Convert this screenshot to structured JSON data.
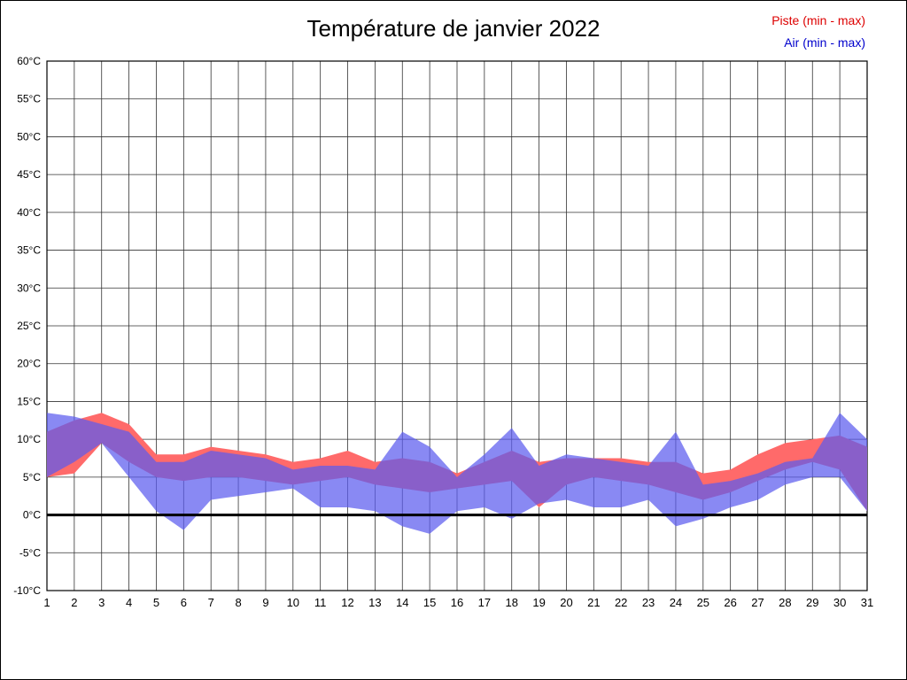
{
  "title": "Température de janvier 2022",
  "legend": {
    "piste_label": "Piste (min - max)",
    "air_label": "Air (min - max)",
    "piste_text_color": "#dd0000",
    "air_text_color": "#0000cc"
  },
  "colors": {
    "piste_band": "#ff6a6a",
    "air_band": "#5c5cef",
    "air_band_opacity": 0.72,
    "grid": "#333333",
    "axis": "#000000",
    "zero_line": "#000000"
  },
  "chart_data": {
    "type": "area",
    "title": "Température de janvier 2022",
    "xlabel": "",
    "ylabel": "",
    "grid": true,
    "legend_position": "top-right",
    "ylim": [
      -10,
      60
    ],
    "x": [
      1,
      2,
      3,
      4,
      5,
      6,
      7,
      8,
      9,
      10,
      11,
      12,
      13,
      14,
      15,
      16,
      17,
      18,
      19,
      20,
      21,
      22,
      23,
      24,
      25,
      26,
      27,
      28,
      29,
      30,
      31
    ],
    "y_ticks": [
      {
        "v": -10,
        "label": "-10°C"
      },
      {
        "v": -5,
        "label": "-5°C"
      },
      {
        "v": 0,
        "label": "0°C"
      },
      {
        "v": 5,
        "label": "5°C"
      },
      {
        "v": 10,
        "label": "10°C"
      },
      {
        "v": 15,
        "label": "15°C"
      },
      {
        "v": 20,
        "label": "20°C"
      },
      {
        "v": 25,
        "label": "25°C"
      },
      {
        "v": 30,
        "label": "30°C"
      },
      {
        "v": 35,
        "label": "35°C"
      },
      {
        "v": 40,
        "label": "40°C"
      },
      {
        "v": 45,
        "label": "45°C"
      },
      {
        "v": 50,
        "label": "50°C"
      },
      {
        "v": 55,
        "label": "55°C"
      },
      {
        "v": 60,
        "label": "60°C"
      }
    ],
    "series": [
      {
        "name": "Piste (min - max)",
        "color": "#ff6a6a",
        "min": [
          5,
          5.5,
          9.5,
          7,
          5,
          4.5,
          5,
          5,
          4.5,
          4,
          4.5,
          5,
          4,
          3.5,
          3,
          3.5,
          4,
          4.5,
          1,
          4,
          5,
          4.5,
          4,
          3,
          2,
          3,
          4.5,
          6,
          7,
          6,
          0.5
        ],
        "max": [
          11,
          12.5,
          13.5,
          12,
          8,
          8,
          9,
          8.5,
          8,
          7,
          7.5,
          8.5,
          7,
          7.5,
          7,
          5.5,
          7,
          8.5,
          7,
          7.5,
          7.5,
          7.5,
          7,
          7,
          5.5,
          6,
          8,
          9.5,
          10,
          10.5,
          9
        ]
      },
      {
        "name": "Air (min - max)",
        "color": "#5c5cef",
        "min": [
          5,
          7,
          9.5,
          5,
          0.5,
          -2,
          2,
          2.5,
          3,
          3.5,
          1,
          1,
          0.5,
          -1.5,
          -2.5,
          0.5,
          1,
          -0.5,
          1.5,
          2,
          1,
          1,
          2,
          -1.5,
          -0.5,
          1,
          2,
          4,
          5,
          5,
          0.5
        ],
        "max": [
          13.5,
          13,
          12,
          11,
          7,
          7,
          8.5,
          8,
          7.5,
          6,
          6.5,
          6.5,
          6,
          11,
          9,
          5,
          8,
          11.5,
          6.5,
          8,
          7.5,
          7,
          6.5,
          11,
          4,
          4.5,
          5.5,
          7,
          7.5,
          13.5,
          10
        ]
      }
    ]
  }
}
